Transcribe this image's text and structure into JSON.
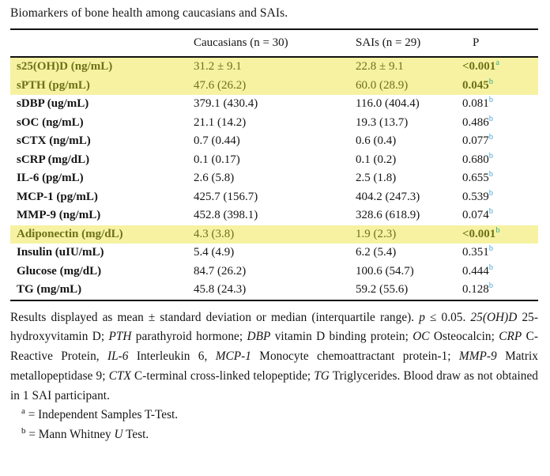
{
  "caption": "Biomarkers of bone health among caucasians and SAIs.",
  "table": {
    "columns": [
      "",
      "Caucasians (n = 30)",
      "SAIs (n = 29)",
      "P"
    ],
    "rows": [
      {
        "label": "s25(OH)D (ng/mL)",
        "caucasians": "31.2 ± 9.1",
        "sais": "22.8 ± 9.1",
        "p": "<0.001",
        "sup": "a",
        "highlight": true
      },
      {
        "label": "sPTH (pg/mL)",
        "caucasians": "47.6 (26.2)",
        "sais": "60.0 (28.9)",
        "p": "0.045",
        "sup": "b",
        "highlight": true
      },
      {
        "label": "sDBP (ug/mL)",
        "caucasians": "379.1 (430.4)",
        "sais": "116.0 (404.4)",
        "p": "0.081",
        "sup": "b",
        "highlight": false
      },
      {
        "label": "sOC (ng/mL)",
        "caucasians": "21.1 (14.2)",
        "sais": "19.3 (13.7)",
        "p": "0.486",
        "sup": "b",
        "highlight": false
      },
      {
        "label": "sCTX (ng/mL)",
        "caucasians": "0.7 (0.44)",
        "sais": "0.6 (0.4)",
        "p": "0.077",
        "sup": "b",
        "highlight": false
      },
      {
        "label": "sCRP (mg/dL)",
        "caucasians": "0.1 (0.17)",
        "sais": "0.1 (0.2)",
        "p": "0.680",
        "sup": "b",
        "highlight": false
      },
      {
        "label": "IL-6 (pg/mL)",
        "caucasians": "2.6 (5.8)",
        "sais": "2.5 (1.8)",
        "p": "0.655",
        "sup": "b",
        "highlight": false
      },
      {
        "label": "MCP-1 (pg/mL)",
        "caucasians": "425.7 (156.7)",
        "sais": "404.2 (247.3)",
        "p": "0.539",
        "sup": "b",
        "highlight": false
      },
      {
        "label": "MMP-9 (ng/mL)",
        "caucasians": "452.8 (398.1)",
        "sais": "328.6 (618.9)",
        "p": "0.074",
        "sup": "b",
        "highlight": false
      },
      {
        "label": "Adiponectin (mg/dL)",
        "caucasians": "4.3 (3.8)",
        "sais": "1.9 (2.3)",
        "p": "<0.001",
        "sup": "b",
        "highlight": true
      },
      {
        "label": "Insulin (uIU/mL)",
        "caucasians": "5.4 (4.9)",
        "sais": "6.2 (5.4)",
        "p": "0.351",
        "sup": "b",
        "highlight": false
      },
      {
        "label": "Glucose (mg/dL)",
        "caucasians": "84.7 (26.2)",
        "sais": "100.6 (54.7)",
        "p": "0.444",
        "sup": "b",
        "highlight": false
      },
      {
        "label": "TG (mg/mL)",
        "caucasians": "45.8 (24.3)",
        "sais": "59.2 (55.6)",
        "p": "0.128",
        "sup": "b",
        "highlight": false
      }
    ]
  },
  "footnotes": {
    "general_segments": [
      {
        "t": "Results displayed as mean ± standard deviation or median (interquartile range). ",
        "i": false
      },
      {
        "t": "p",
        "i": true
      },
      {
        "t": " ≤ 0.05. ",
        "i": false
      },
      {
        "t": "25(OH)D",
        "i": true
      },
      {
        "t": " 25-hydroxyvitamin D; ",
        "i": false
      },
      {
        "t": "PTH",
        "i": true
      },
      {
        "t": " parathyroid hormone; ",
        "i": false
      },
      {
        "t": "DBP",
        "i": true
      },
      {
        "t": " vitamin D binding protein; ",
        "i": false
      },
      {
        "t": "OC",
        "i": true
      },
      {
        "t": " Osteocalcin; ",
        "i": false
      },
      {
        "t": "CRP",
        "i": true
      },
      {
        "t": " C-Reactive Protein, ",
        "i": false
      },
      {
        "t": "IL-6",
        "i": true
      },
      {
        "t": " Interleukin 6, ",
        "i": false
      },
      {
        "t": "MCP-1",
        "i": true
      },
      {
        "t": " Monocyte chemoattractant protein-1; ",
        "i": false
      },
      {
        "t": "MMP-9",
        "i": true
      },
      {
        "t": " Matrix metallopeptidase 9; ",
        "i": false
      },
      {
        "t": "CTX",
        "i": true
      },
      {
        "t": " C-terminal cross-linked telopeptide; ",
        "i": false
      },
      {
        "t": "TG",
        "i": true
      },
      {
        "t": " Triglycerides. Blood draw as not obtained in 1 SAI participant.",
        "i": false
      }
    ],
    "a": {
      "marker": "a",
      "segments": [
        {
          "t": " = Independent Samples T-Test.",
          "i": false
        }
      ]
    },
    "b": {
      "marker": "b",
      "segments": [
        {
          "t": " = Mann Whitney ",
          "i": false
        },
        {
          "t": "U",
          "i": true
        },
        {
          "t": " Test.",
          "i": false
        }
      ]
    }
  },
  "colors": {
    "highlight_bg": "#f6f2a2",
    "highlight_text": "#6d7118",
    "sup_blue": "#4aa5dc",
    "sup_teal": "#34a98c",
    "rule": "#111111"
  }
}
